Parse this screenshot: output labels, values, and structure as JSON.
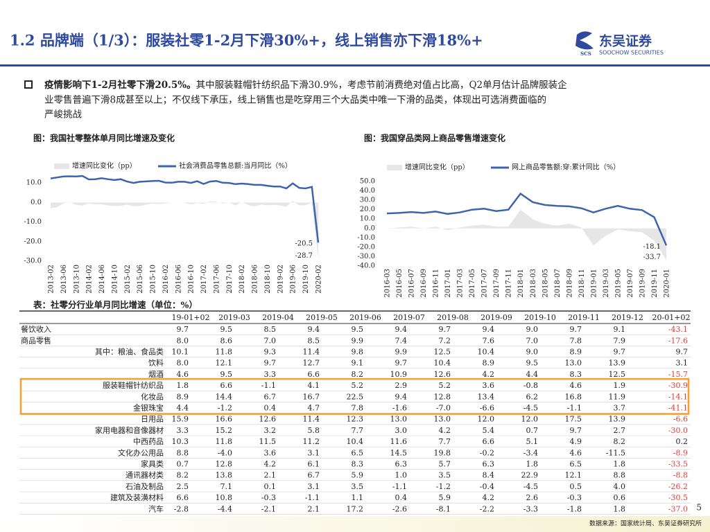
{
  "header": {
    "title": "1.2 品牌端（1/3）：服装社零1-2月下滑30%+，线上销售亦下滑18%+",
    "logo_mark": "SCS",
    "logo_name": "东吴证券",
    "logo_en": "SOOCHOW SECURITIES"
  },
  "bullet": {
    "bold": "疫情影响下1-2月社零下滑20.5%。",
    "lines": [
      "其中服装鞋帽针纺织品下滑30.9%，考虑节前消费绝对值占比高，Q2单月估计品牌服装企",
      "业零售普遍下滑8成甚至以上；不仅线下承压，线上销售也是吃穿用三个大品类中唯一下滑的品类，体现出可选消费面临的",
      "严峻挑战"
    ]
  },
  "chart_data": [
    {
      "type": "line",
      "title": "图：我国社零整体单月同比增速及变化",
      "categories": [
        "2013-02",
        null,
        "2013-06",
        null,
        "2013-10",
        null,
        "2014-02",
        null,
        "2014-06",
        null,
        "2014-10",
        null,
        "2015-02",
        null,
        "2015-06",
        null,
        "2015-10",
        null,
        "2016-02",
        null,
        "2016-06",
        null,
        "2016-10",
        null,
        "2017-02",
        null,
        "2017-06",
        null,
        "2017-10",
        null,
        "2018-02",
        null,
        "2018-06",
        null,
        "2018-10",
        null,
        "2019-02",
        null,
        "2019-06",
        null,
        "2019-10",
        null,
        "2020-02"
      ],
      "series": [
        {
          "name": "增速同比变化（pp）",
          "color": "#e6e6e6",
          "area": true,
          "values": [
            -2.9,
            -2.4,
            -0.4,
            0.2,
            -1.2,
            -1.6,
            -0.5,
            -0.9,
            -0.9,
            -1.5,
            -1.8,
            -1.7,
            -1.1,
            -1.9,
            -1.8,
            -1.1,
            -0.5,
            -0.8,
            -0.5,
            0.1,
            0,
            -0.2,
            -1.0,
            -0.2,
            -0.7,
            0.6,
            0.4,
            -0.5,
            0,
            -1.5,
            0.2,
            -1.3,
            -2.0,
            -1.1,
            -1.4,
            -1.2,
            -1.5,
            -2.2,
            0.8,
            -1.5,
            -1.4,
            -0.2,
            -28.7
          ]
        },
        {
          "name": "社会消费品零售总额:当月同比（%）",
          "color": "#3b64ad",
          "values": [
            12.3,
            12.8,
            13.3,
            13.4,
            13.3,
            13.6,
            11.8,
            11.9,
            12.4,
            11.9,
            11.5,
            11.9,
            10.7,
            10.0,
            10.6,
            10.8,
            11.0,
            11.1,
            10.2,
            10.1,
            10.6,
            10.6,
            10.0,
            10.9,
            9.5,
            10.7,
            11.0,
            10.1,
            10.0,
            9.4,
            9.7,
            9.4,
            9.0,
            9.0,
            8.6,
            8.2,
            8.2,
            7.2,
            9.8,
            7.5,
            7.2,
            8.0,
            -20.5
          ]
        }
      ],
      "ylim": [
        -30,
        15
      ],
      "yticks": [
        {
          "value": -30,
          "label": "-30.0"
        },
        {
          "value": -20,
          "label": "-20.0"
        },
        {
          "value": -10,
          "label": "-10.0"
        },
        {
          "value": 0,
          "label": "0.0"
        },
        {
          "value": 10,
          "label": "10.0"
        }
      ]
    },
    {
      "type": "line",
      "title": "图：我国穿品类网上商品零售增速变化",
      "categories": [
        "2016-03",
        "2016-05",
        "2016-07",
        "2016-09",
        "2016-11",
        "2017-01",
        "2017-03",
        "2017-05",
        "2017-07",
        "2017-09",
        "2017-11",
        "2018-01",
        "2018-03",
        "2018-05",
        "2018-07",
        "2018-09",
        "2018-11",
        "2019-01",
        "2019-03",
        "2019-05",
        "2019-07",
        "2019-09",
        "2019-11",
        "2020-01"
      ],
      "series": [
        {
          "name": "增速同比变化（pp）",
          "color": "#e6e6e6",
          "area": true,
          "values": [
            0,
            1,
            2,
            0,
            2,
            -2,
            1,
            3,
            4,
            2,
            2,
            20,
            10,
            5,
            3,
            5,
            1,
            -18,
            -8,
            -1,
            -3,
            -4,
            -13,
            -33.7
          ]
        },
        {
          "name": "网上商品零售额:穿:累计同比（%）",
          "color": "#3b64ad",
          "values": [
            16,
            16.5,
            17.5,
            16.5,
            18,
            15.5,
            17,
            20,
            21,
            18.5,
            20,
            37,
            28,
            25,
            24,
            23.5,
            21.5,
            17,
            21,
            24,
            21,
            19.5,
            12,
            -18.1
          ]
        }
      ],
      "ylim": [
        -40,
        50
      ],
      "yticks": [
        {
          "value": -40,
          "label": "-40.0"
        },
        {
          "value": -30,
          "label": "-30.0"
        },
        {
          "value": -20,
          "label": "-20.0"
        },
        {
          "value": -10,
          "label": "-10.0"
        },
        {
          "value": 0,
          "label": "0.0"
        },
        {
          "value": 10,
          "label": "10.0"
        },
        {
          "value": 20,
          "label": "20.0"
        },
        {
          "value": 30,
          "label": "30.0"
        },
        {
          "value": 40,
          "label": "40.0"
        },
        {
          "value": 50,
          "label": "50.0"
        }
      ]
    }
  ],
  "table": {
    "title": "表：社零分行业单月同比增速（单位：%）",
    "negative_color": "#e03c3c",
    "highlight_color": "#f5a030",
    "highlight_rows": [
      5,
      6,
      7
    ],
    "columns": [
      "19-01+02",
      "2019-03",
      "2019-04",
      "2019-05",
      "2019-06",
      "2019-07",
      "2019-08",
      "2019-09",
      "2019-10",
      "2019-11",
      "2019-12",
      "20-01+02"
    ],
    "rows": [
      [
        "餐饮收入",
        "9.7",
        "9.5",
        "8.5",
        "9.4",
        "9.5",
        "9.4",
        "9.7",
        "9.4",
        "9.0",
        "9.7",
        "9.1",
        "-43.1"
      ],
      [
        "商品零售",
        "8.0",
        "8.6",
        "7.0",
        "8.5",
        "9.9",
        "7.4",
        "7.2",
        "7.6",
        "7.0",
        "7.8",
        "7.9",
        "-17.6"
      ],
      [
        "其中：粮油、食品类",
        "10.1",
        "11.8",
        "9.3",
        "11.4",
        "9.8",
        "9.9",
        "12.5",
        "10.4",
        "9.0",
        "8.9",
        "9.7",
        "9.7"
      ],
      [
        "饮料",
        "8.0",
        "12.1",
        "9.7",
        "12.7",
        "9.1",
        "9.7",
        "10.4",
        "8.9",
        "9.5",
        "13.0",
        "13.9",
        "3.1"
      ],
      [
        "烟酒",
        "4.6",
        "9.5",
        "3.3",
        "6.6",
        "8.2",
        "10.9",
        "12.6",
        "4.2",
        "4.4",
        "8.3",
        "12.5",
        "-15.7"
      ],
      [
        "服装鞋帽针纺织品",
        "1.8",
        "6.6",
        "-1.1",
        "4.1",
        "5.2",
        "2.9",
        "5.2",
        "3.6",
        "-0.8",
        "4.6",
        "1.9",
        "-30.9"
      ],
      [
        "化妆品",
        "8.9",
        "14.4",
        "6.7",
        "16.7",
        "22.5",
        "9.4",
        "12.8",
        "13.4",
        "6.2",
        "16.8",
        "11.9",
        "-14.1"
      ],
      [
        "金银珠宝",
        "4.4",
        "-1.2",
        "0.4",
        "4.7",
        "7.8",
        "-1.6",
        "-7.0",
        "-6.6",
        "-4.5",
        "-1.1",
        "3.7",
        "-41.1"
      ],
      [
        "日用品",
        "15.9",
        "16.6",
        "12.6",
        "11.4",
        "12.3",
        "13.0",
        "13.0",
        "12.0",
        "12.0",
        "17.5",
        "13.9",
        "-6.6"
      ],
      [
        "家用电器和音像器材",
        "3.3",
        "15.2",
        "3.2",
        "5.8",
        "7.7",
        "3.0",
        "4.2",
        "5.4",
        "0.7",
        "9.7",
        "2.7",
        "-30.0"
      ],
      [
        "中西药品",
        "10.3",
        "11.8",
        "11.5",
        "11.2",
        "10.4",
        "11.6",
        "7.7",
        "6.6",
        "5.1",
        "4.9",
        "8.2",
        "0.2"
      ],
      [
        "文化办公用品",
        "8.8",
        "-4.0",
        "3.6",
        "3.1",
        "6.5",
        "14.5",
        "19.8",
        "-0.2",
        "-3.4",
        "4.6",
        "-11.5",
        "-8.9"
      ],
      [
        "家具类",
        "0.7",
        "12.8",
        "4.2",
        "6.1",
        "8.3",
        "6.3",
        "5.7",
        "6.3",
        "1.8",
        "6.5",
        "1.8",
        "-33.5"
      ],
      [
        "通讯器材类",
        "8.2",
        "13.8",
        "2.1",
        "6.7",
        "5.9",
        "1.0",
        "3.5",
        "8.4",
        "22.9",
        "12.1",
        "8.8",
        "-8.8"
      ],
      [
        "石油及制品",
        "2.5",
        "7.1",
        "0.1",
        "3.1",
        "3.5",
        "-1.1",
        "-1.2",
        "-0.4",
        "-4.5",
        "0.5",
        "4.0",
        "-26.2"
      ],
      [
        "建筑及装潢材料",
        "6.6",
        "10.8",
        "-0.3",
        "-1.1",
        "1.1",
        "0.4",
        "5.9",
        "4.2",
        "2.6",
        "-0.3",
        "0.6",
        "-30.5"
      ],
      [
        "汽车",
        "-2.8",
        "-4.4",
        "-2.1",
        "2.1",
        "17.2",
        "-2.6",
        "-8.1",
        "-2.2",
        "-3.3",
        "-1.8",
        "1.8",
        "-37.0"
      ]
    ]
  },
  "footer": {
    "source": "数据来源：国家统计局、东吴证券研究所",
    "page": "5"
  }
}
